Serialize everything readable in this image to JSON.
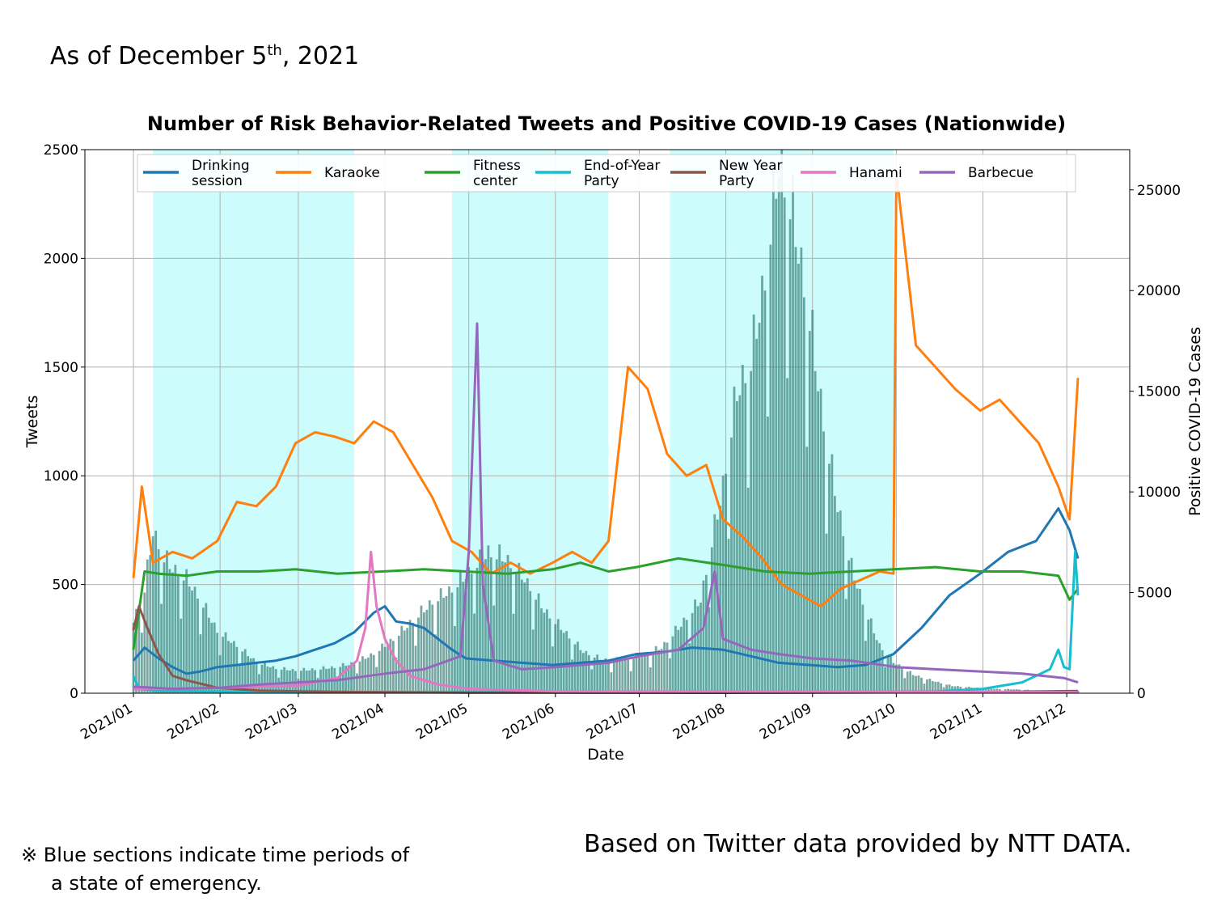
{
  "header": {
    "prefix": "As of December 5",
    "sup": "th",
    "suffix": ", 2021"
  },
  "footer": {
    "note_mark": "※",
    "note_line1": "Blue sections indicate time periods of",
    "note_line2": "a state of emergency.",
    "source": "Based on Twitter data provided by NTT DATA."
  },
  "colors": {
    "drinking": "#1f77b4",
    "karaoke": "#ff7f0e",
    "fitness": "#2ca02c",
    "endofyear": "#17becf",
    "newyear": "#8c564b",
    "hanami": "#e377c2",
    "barbecue": "#9467bd",
    "cases_bar": "#2e7a72",
    "emergency_band": "#ccfcfc"
  },
  "chart_data": {
    "type": "line",
    "title": "Number of Risk Behavior-Related Tweets and Positive COVID-19 Cases (Nationwide)",
    "xlabel": "Date",
    "ylabel": "Tweets",
    "y2label": "Positive COVID-19 Cases",
    "ylim": [
      0,
      2500
    ],
    "y2lim": [
      0,
      27000
    ],
    "xlim": [
      "2021-01-01",
      "2021-12-05"
    ],
    "yticks": [
      0,
      500,
      1000,
      1500,
      2000,
      2500
    ],
    "y2ticks": [
      0,
      5000,
      10000,
      15000,
      20000,
      25000
    ],
    "xticks": [
      "2021/01",
      "2021/02",
      "2021/03",
      "2021/04",
      "2021/05",
      "2021/06",
      "2021/07",
      "2021/08",
      "2021/09",
      "2021/10",
      "2021/11",
      "2021/12"
    ],
    "grid": true,
    "legend_position": "top",
    "emergency_periods": [
      [
        "2021-01-08",
        "2021-03-21"
      ],
      [
        "2021-04-25",
        "2021-06-20"
      ],
      [
        "2021-07-12",
        "2021-09-30"
      ]
    ],
    "series": [
      {
        "name": "Drinking\nsession",
        "key": "drinking",
        "points": [
          [
            "2021-01-01",
            150
          ],
          [
            "2021-01-05",
            210
          ],
          [
            "2021-01-10",
            160
          ],
          [
            "2021-01-15",
            120
          ],
          [
            "2021-01-20",
            90
          ],
          [
            "2021-01-25",
            100
          ],
          [
            "2021-01-31",
            120
          ],
          [
            "2021-02-07",
            130
          ],
          [
            "2021-02-14",
            140
          ],
          [
            "2021-02-21",
            150
          ],
          [
            "2021-02-28",
            170
          ],
          [
            "2021-03-07",
            200
          ],
          [
            "2021-03-14",
            230
          ],
          [
            "2021-03-21",
            280
          ],
          [
            "2021-03-28",
            370
          ],
          [
            "2021-04-01",
            400
          ],
          [
            "2021-04-05",
            330
          ],
          [
            "2021-04-10",
            320
          ],
          [
            "2021-04-15",
            300
          ],
          [
            "2021-04-20",
            250
          ],
          [
            "2021-04-25",
            200
          ],
          [
            "2021-04-30",
            160
          ],
          [
            "2021-05-10",
            150
          ],
          [
            "2021-05-20",
            140
          ],
          [
            "2021-05-31",
            130
          ],
          [
            "2021-06-10",
            140
          ],
          [
            "2021-06-20",
            150
          ],
          [
            "2021-06-30",
            180
          ],
          [
            "2021-07-10",
            190
          ],
          [
            "2021-07-20",
            210
          ],
          [
            "2021-07-31",
            200
          ],
          [
            "2021-08-10",
            170
          ],
          [
            "2021-08-20",
            140
          ],
          [
            "2021-08-31",
            130
          ],
          [
            "2021-09-10",
            120
          ],
          [
            "2021-09-20",
            130
          ],
          [
            "2021-09-30",
            180
          ],
          [
            "2021-10-10",
            300
          ],
          [
            "2021-10-20",
            450
          ],
          [
            "2021-10-31",
            550
          ],
          [
            "2021-11-10",
            650
          ],
          [
            "2021-11-20",
            700
          ],
          [
            "2021-11-28",
            850
          ],
          [
            "2021-12-02",
            750
          ],
          [
            "2021-12-05",
            620
          ]
        ]
      },
      {
        "name": "Karaoke",
        "key": "karaoke",
        "points": [
          [
            "2021-01-01",
            530
          ],
          [
            "2021-01-04",
            950
          ],
          [
            "2021-01-08",
            600
          ],
          [
            "2021-01-15",
            650
          ],
          [
            "2021-01-22",
            620
          ],
          [
            "2021-01-31",
            700
          ],
          [
            "2021-02-07",
            880
          ],
          [
            "2021-02-14",
            860
          ],
          [
            "2021-02-21",
            950
          ],
          [
            "2021-02-28",
            1150
          ],
          [
            "2021-03-07",
            1200
          ],
          [
            "2021-03-14",
            1180
          ],
          [
            "2021-03-21",
            1150
          ],
          [
            "2021-03-28",
            1250
          ],
          [
            "2021-04-04",
            1200
          ],
          [
            "2021-04-11",
            1050
          ],
          [
            "2021-04-18",
            900
          ],
          [
            "2021-04-25",
            700
          ],
          [
            "2021-05-02",
            650
          ],
          [
            "2021-05-09",
            550
          ],
          [
            "2021-05-16",
            600
          ],
          [
            "2021-05-23",
            550
          ],
          [
            "2021-05-31",
            600
          ],
          [
            "2021-06-07",
            650
          ],
          [
            "2021-06-14",
            600
          ],
          [
            "2021-06-20",
            700
          ],
          [
            "2021-06-27",
            1500
          ],
          [
            "2021-07-04",
            1400
          ],
          [
            "2021-07-11",
            1100
          ],
          [
            "2021-07-18",
            1000
          ],
          [
            "2021-07-25",
            1050
          ],
          [
            "2021-07-31",
            800
          ],
          [
            "2021-08-07",
            720
          ],
          [
            "2021-08-14",
            620
          ],
          [
            "2021-08-21",
            500
          ],
          [
            "2021-08-28",
            450
          ],
          [
            "2021-09-04",
            400
          ],
          [
            "2021-09-11",
            480
          ],
          [
            "2021-09-18",
            520
          ],
          [
            "2021-09-25",
            560
          ],
          [
            "2021-09-30",
            550
          ],
          [
            "2021-10-01",
            2400
          ],
          [
            "2021-10-08",
            1600
          ],
          [
            "2021-10-15",
            1500
          ],
          [
            "2021-10-22",
            1400
          ],
          [
            "2021-10-31",
            1300
          ],
          [
            "2021-11-07",
            1350
          ],
          [
            "2021-11-14",
            1250
          ],
          [
            "2021-11-21",
            1150
          ],
          [
            "2021-11-28",
            950
          ],
          [
            "2021-12-02",
            800
          ],
          [
            "2021-12-05",
            1450
          ]
        ]
      },
      {
        "name": "Fitness\ncenter",
        "key": "fitness",
        "points": [
          [
            "2021-01-01",
            200
          ],
          [
            "2021-01-05",
            560
          ],
          [
            "2021-01-10",
            550
          ],
          [
            "2021-01-20",
            540
          ],
          [
            "2021-01-31",
            560
          ],
          [
            "2021-02-15",
            560
          ],
          [
            "2021-02-28",
            570
          ],
          [
            "2021-03-15",
            550
          ],
          [
            "2021-03-31",
            560
          ],
          [
            "2021-04-15",
            570
          ],
          [
            "2021-04-30",
            560
          ],
          [
            "2021-05-15",
            550
          ],
          [
            "2021-05-31",
            570
          ],
          [
            "2021-06-10",
            600
          ],
          [
            "2021-06-20",
            560
          ],
          [
            "2021-06-30",
            580
          ],
          [
            "2021-07-15",
            620
          ],
          [
            "2021-07-31",
            590
          ],
          [
            "2021-08-15",
            560
          ],
          [
            "2021-08-31",
            550
          ],
          [
            "2021-09-15",
            560
          ],
          [
            "2021-09-30",
            570
          ],
          [
            "2021-10-15",
            580
          ],
          [
            "2021-10-31",
            560
          ],
          [
            "2021-11-15",
            560
          ],
          [
            "2021-11-28",
            540
          ],
          [
            "2021-12-02",
            430
          ],
          [
            "2021-12-05",
            480
          ]
        ]
      },
      {
        "name": "End-of-Year\nParty",
        "key": "endofyear",
        "points": [
          [
            "2021-01-01",
            80
          ],
          [
            "2021-01-03",
            20
          ],
          [
            "2021-01-10",
            10
          ],
          [
            "2021-03-01",
            5
          ],
          [
            "2021-06-01",
            5
          ],
          [
            "2021-09-01",
            5
          ],
          [
            "2021-10-15",
            8
          ],
          [
            "2021-11-01",
            20
          ],
          [
            "2021-11-15",
            50
          ],
          [
            "2021-11-25",
            110
          ],
          [
            "2021-11-28",
            200
          ],
          [
            "2021-11-30",
            120
          ],
          [
            "2021-12-02",
            110
          ],
          [
            "2021-12-04",
            650
          ],
          [
            "2021-12-05",
            450
          ]
        ]
      },
      {
        "name": "New Year\nParty",
        "key": "newyear",
        "points": [
          [
            "2021-01-01",
            290
          ],
          [
            "2021-01-03",
            400
          ],
          [
            "2021-01-06",
            300
          ],
          [
            "2021-01-10",
            180
          ],
          [
            "2021-01-15",
            80
          ],
          [
            "2021-01-20",
            60
          ],
          [
            "2021-01-31",
            25
          ],
          [
            "2021-02-15",
            12
          ],
          [
            "2021-03-15",
            6
          ],
          [
            "2021-05-01",
            3
          ],
          [
            "2021-08-01",
            2
          ],
          [
            "2021-11-01",
            5
          ],
          [
            "2021-12-05",
            10
          ]
        ]
      },
      {
        "name": "Hanami",
        "key": "hanami",
        "points": [
          [
            "2021-01-01",
            20
          ],
          [
            "2021-02-01",
            25
          ],
          [
            "2021-03-01",
            35
          ],
          [
            "2021-03-15",
            70
          ],
          [
            "2021-03-22",
            150
          ],
          [
            "2021-03-25",
            300
          ],
          [
            "2021-03-27",
            650
          ],
          [
            "2021-03-29",
            400
          ],
          [
            "2021-04-01",
            250
          ],
          [
            "2021-04-05",
            150
          ],
          [
            "2021-04-10",
            80
          ],
          [
            "2021-04-20",
            40
          ],
          [
            "2021-05-01",
            20
          ],
          [
            "2021-06-01",
            8
          ],
          [
            "2021-12-05",
            5
          ]
        ]
      },
      {
        "name": "Barbecue",
        "key": "barbecue",
        "points": [
          [
            "2021-01-01",
            30
          ],
          [
            "2021-01-15",
            20
          ],
          [
            "2021-02-01",
            25
          ],
          [
            "2021-02-15",
            40
          ],
          [
            "2021-03-01",
            50
          ],
          [
            "2021-03-15",
            60
          ],
          [
            "2021-04-01",
            90
          ],
          [
            "2021-04-15",
            110
          ],
          [
            "2021-04-28",
            170
          ],
          [
            "2021-05-01",
            650
          ],
          [
            "2021-05-04",
            1700
          ],
          [
            "2021-05-06",
            500
          ],
          [
            "2021-05-10",
            150
          ],
          [
            "2021-05-20",
            110
          ],
          [
            "2021-06-01",
            120
          ],
          [
            "2021-06-20",
            140
          ],
          [
            "2021-07-01",
            170
          ],
          [
            "2021-07-15",
            200
          ],
          [
            "2021-07-24",
            300
          ],
          [
            "2021-07-28",
            560
          ],
          [
            "2021-07-31",
            250
          ],
          [
            "2021-08-10",
            200
          ],
          [
            "2021-08-20",
            180
          ],
          [
            "2021-09-01",
            160
          ],
          [
            "2021-09-15",
            150
          ],
          [
            "2021-10-01",
            120
          ],
          [
            "2021-10-15",
            110
          ],
          [
            "2021-10-31",
            100
          ],
          [
            "2021-11-15",
            90
          ],
          [
            "2021-11-30",
            70
          ],
          [
            "2021-12-05",
            50
          ]
        ]
      }
    ],
    "cases_series": {
      "name": "Positive COVID-19 Cases",
      "axis": "right",
      "points": [
        [
          "2021-01-01",
          3500
        ],
        [
          "2021-01-05",
          5000
        ],
        [
          "2021-01-08",
          7800
        ],
        [
          "2021-01-12",
          6500
        ],
        [
          "2021-01-15",
          6000
        ],
        [
          "2021-01-20",
          5500
        ],
        [
          "2021-01-25",
          4500
        ],
        [
          "2021-01-31",
          3000
        ],
        [
          "2021-02-07",
          2300
        ],
        [
          "2021-02-14",
          1500
        ],
        [
          "2021-02-21",
          1200
        ],
        [
          "2021-02-28",
          1100
        ],
        [
          "2021-03-07",
          1150
        ],
        [
          "2021-03-14",
          1250
        ],
        [
          "2021-03-21",
          1450
        ],
        [
          "2021-03-28",
          1900
        ],
        [
          "2021-04-04",
          2600
        ],
        [
          "2021-04-11",
          3500
        ],
        [
          "2021-04-18",
          4400
        ],
        [
          "2021-04-25",
          5000
        ],
        [
          "2021-05-01",
          5800
        ],
        [
          "2021-05-08",
          6800
        ],
        [
          "2021-05-14",
          6500
        ],
        [
          "2021-05-21",
          5500
        ],
        [
          "2021-05-28",
          4000
        ],
        [
          "2021-06-04",
          3000
        ],
        [
          "2021-06-11",
          2000
        ],
        [
          "2021-06-18",
          1600
        ],
        [
          "2021-06-25",
          1600
        ],
        [
          "2021-07-02",
          1800
        ],
        [
          "2021-07-09",
          2200
        ],
        [
          "2021-07-16",
          3300
        ],
        [
          "2021-07-23",
          4500
        ],
        [
          "2021-07-31",
          10000
        ],
        [
          "2021-08-05",
          14500
        ],
        [
          "2021-08-10",
          16000
        ],
        [
          "2021-08-15",
          20000
        ],
        [
          "2021-08-20",
          25700
        ],
        [
          "2021-08-25",
          23000
        ],
        [
          "2021-08-31",
          18000
        ],
        [
          "2021-09-05",
          13000
        ],
        [
          "2021-09-10",
          9000
        ],
        [
          "2021-09-15",
          6000
        ],
        [
          "2021-09-20",
          4000
        ],
        [
          "2021-09-25",
          2300
        ],
        [
          "2021-09-30",
          1500
        ],
        [
          "2021-10-07",
          900
        ],
        [
          "2021-10-14",
          600
        ],
        [
          "2021-10-21",
          350
        ],
        [
          "2021-10-31",
          250
        ],
        [
          "2021-11-07",
          200
        ],
        [
          "2021-11-14",
          180
        ],
        [
          "2021-11-21",
          130
        ],
        [
          "2021-11-28",
          120
        ],
        [
          "2021-12-05",
          120
        ]
      ]
    }
  }
}
